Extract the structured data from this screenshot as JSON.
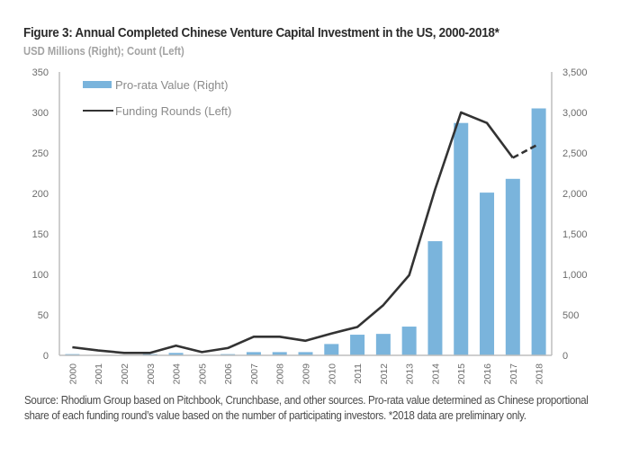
{
  "header": {
    "title": "Figure 3: Annual Completed Chinese Venture Capital Investment in the US, 2000-2018*",
    "subtitle": "USD Millions (Right); Count (Left)"
  },
  "footer": {
    "source": "Source: Rhodium Group based on Pitchbook, Crunchbase, and other sources. Pro-rata value determined as Chinese proportional share of each funding round’s value based on the number of participating investors. *2018 data are preliminary only."
  },
  "colors": {
    "bar": "#7ab4dc",
    "line": "#333333",
    "axis": "#bdbdbd"
  },
  "chart_data": {
    "type": "bar",
    "title": "Figure 3: Annual Completed Chinese Venture Capital Investment in the US, 2000-2018*",
    "subtitle": "USD Millions (Right); Count (Left)",
    "categories": [
      "2000",
      "2001",
      "2002",
      "2003",
      "2004",
      "2005",
      "2006",
      "2007",
      "2008",
      "2009",
      "2010",
      "2011",
      "2012",
      "2013",
      "2014",
      "2015",
      "2016",
      "2017",
      "2018"
    ],
    "series": [
      {
        "name": "Pro-rata Value (Right)",
        "type": "bar",
        "axis": "right",
        "values": [
          15,
          5,
          5,
          15,
          30,
          5,
          15,
          40,
          40,
          40,
          140,
          255,
          265,
          355,
          1410,
          2870,
          2010,
          2180,
          3050
        ]
      },
      {
        "name": "Funding Rounds (Left)",
        "type": "line",
        "axis": "left",
        "values": [
          10,
          6,
          3,
          3,
          12,
          4,
          9,
          23,
          23,
          18,
          27,
          35,
          62,
          99,
          205,
          300,
          287,
          244,
          261
        ],
        "dashed_from_index": 17
      }
    ],
    "left_axis": {
      "label": "Count",
      "ylim": [
        0,
        350
      ],
      "ticks": [
        "0",
        "50",
        "100",
        "150",
        "200",
        "250",
        "300",
        "350"
      ]
    },
    "right_axis": {
      "label": "USD Millions",
      "ylim": [
        0,
        3500
      ],
      "ticks": [
        "0",
        "500",
        "1,000",
        "1,500",
        "2,000",
        "2,500",
        "3,000",
        "3,500"
      ]
    },
    "legend": {
      "position": "top-left",
      "entries": [
        "Pro-rata Value (Right)",
        "Funding Rounds (Left)"
      ]
    },
    "grid": false,
    "xlabel": "",
    "ylabel": ""
  }
}
